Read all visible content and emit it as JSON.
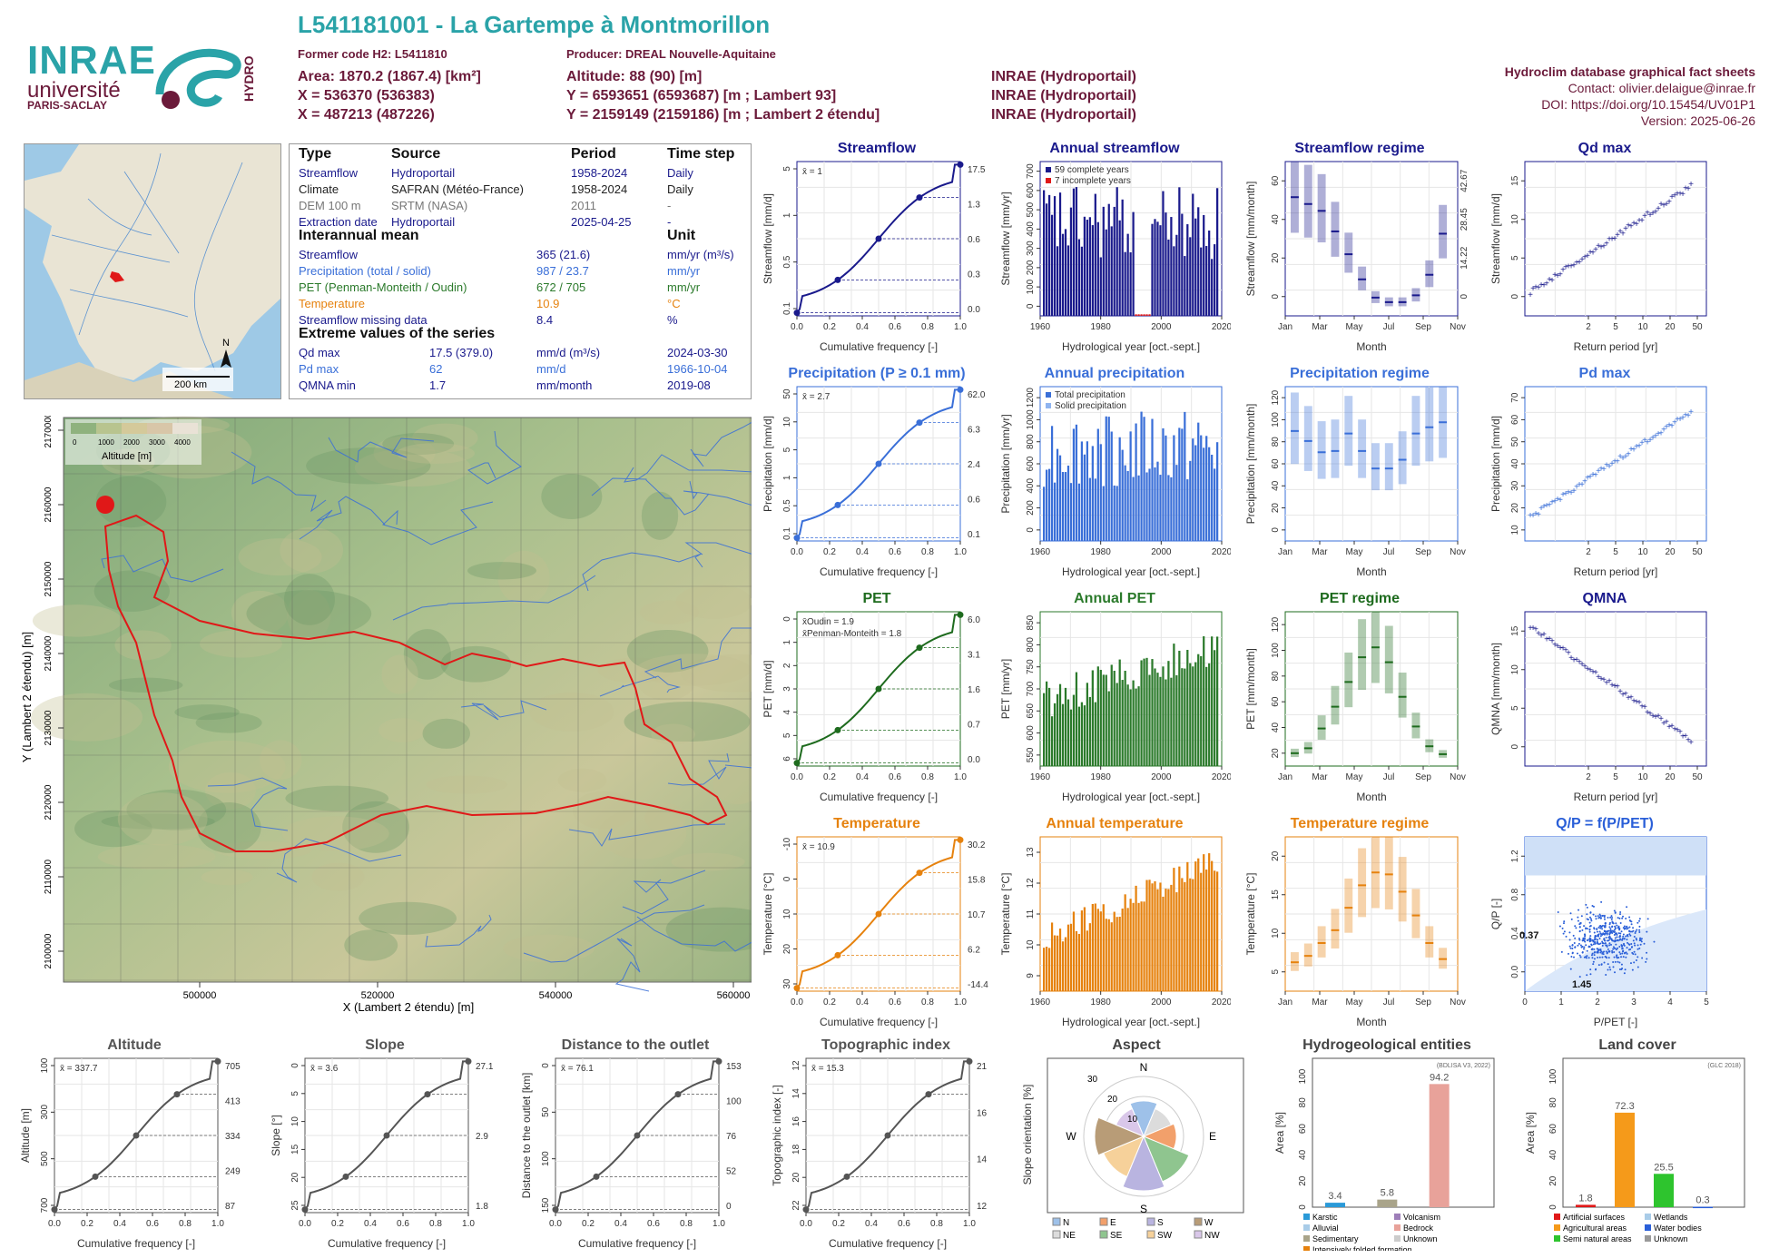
{
  "header": {
    "title": "L541181001 - La Gartempe à Montmorillon",
    "former_code": "Former code H2: L5411810",
    "producer": "Producer: DREAL Nouvelle-Aquitaine",
    "area": "Area: 1870.2 (1867.4) [km²]",
    "x93": "X = 536370 (536383)",
    "x2": "X = 487213 (487226)",
    "altitude": "Altitude: 88 (90) [m]",
    "y93": "Y = 6593651 (6593687) [m ; Lambert 93]",
    "y2": "Y = 2159149 (2159186) [m ; Lambert 2 étendu]",
    "src1": "INRAE (Hydroportail)",
    "src2": "INRAE (Hydroportail)",
    "src3": "INRAE (Hydroportail)",
    "db_title": "Hydroclim database graphical fact sheets",
    "contact": "Contact: olivier.delaigue@inrae.fr",
    "doi": "DOI: https://doi.org/10.15454/UV01P1",
    "version": "Version: 2025-06-26"
  },
  "logos": {
    "inrae": "INRAE",
    "univ": "université",
    "ps": "PARIS-SACLAY",
    "hydro": "HYDRO"
  },
  "info": {
    "headers": [
      "Type",
      "Source",
      "Period",
      "Time step"
    ],
    "rows": [
      {
        "type": "Streamflow",
        "source": "Hydroportail",
        "period": "1958-2024",
        "step": "Daily",
        "color": "#1a1a8c"
      },
      {
        "type": "Climate",
        "source": "SAFRAN (Météo-France)",
        "period": "1958-2024",
        "step": "Daily",
        "color": "#222222"
      },
      {
        "type": "DEM 100 m",
        "source": "SRTM (NASA)",
        "period": "2011",
        "step": "-",
        "color": "#777777"
      },
      {
        "type": "Extraction date",
        "source": "Hydroportail",
        "period": "2025-04-25",
        "step": "-",
        "color": "#1a1a8c"
      }
    ],
    "inter_title": "Interannual mean",
    "unit_title": "Unit",
    "inter": [
      {
        "label": "Streamflow",
        "value": "365 (21.6)",
        "unit": "mm/yr (m³/s)",
        "color": "#1a1a8c"
      },
      {
        "label": "Precipitation (total / solid)",
        "value": "987 / 23.7",
        "unit": "mm/yr",
        "color": "#3a6fd8"
      },
      {
        "label": "PET (Penman-Monteith / Oudin)",
        "value": "672 / 705",
        "unit": "mm/yr",
        "color": "#2b7a2b"
      },
      {
        "label": "Temperature",
        "value": "10.9",
        "unit": "°C",
        "color": "#e6820e"
      },
      {
        "label": "Streamflow missing data",
        "value": "8.4",
        "unit": "%",
        "color": "#1a1a8c"
      }
    ],
    "extreme_title": "Extreme values of the series",
    "extreme": [
      {
        "label": "Qd max",
        "value": "17.5 (379.0)",
        "unit": "mm/d (m³/s)",
        "date": "2024-03-30",
        "color": "#1a1a8c"
      },
      {
        "label": "Pd max",
        "value": "62",
        "unit": "mm/d",
        "date": "1966-10-04",
        "color": "#3a6fd8"
      },
      {
        "label": "QMNA min",
        "value": "1.7",
        "unit": "mm/month",
        "date": "2019-08",
        "color": "#1a1a8c"
      }
    ]
  },
  "map": {
    "scale": "200 km",
    "north": "N",
    "legend_title": "Altitude [m]",
    "legend_ticks": [
      "0",
      "1000",
      "2000",
      "3000",
      "4000"
    ],
    "xlabel": "X (Lambert 2 étendu) [m]",
    "ylabel": "Y (Lambert 2 étendu) [m]",
    "xticks": [
      "500000",
      "520000",
      "540000",
      "560000"
    ],
    "yticks": [
      "2100000",
      "2110000",
      "2120000",
      "2130000",
      "2140000",
      "2150000",
      "2160000",
      "2170000"
    ]
  },
  "chart_data": [
    {
      "id": "streamflow_cdf",
      "type": "line",
      "title": "Streamflow",
      "xlabel": "Cumulative frequency [-]",
      "ylabel": "Streamflow [mm/d]",
      "scale": "log",
      "mean_label": "x̄ = 1",
      "right_ticks": [
        "17.5",
        "1.3",
        "0.6",
        "0.3",
        "0.0"
      ],
      "left_ticks": [
        "5",
        "1",
        "0.5",
        "0.1"
      ],
      "x_ticks": [
        "0.0",
        "0.2",
        "0.4",
        "0.6",
        "0.8",
        "1.0"
      ],
      "color": "#1a1a8c"
    },
    {
      "id": "annual_streamflow",
      "type": "bar",
      "title": "Annual streamflow",
      "xlabel": "Hydrological year [oct.-sept.]",
      "ylabel": "Streamflow [mm/yr]",
      "legend": [
        "59 complete years",
        "7 incomplete years"
      ],
      "x_ticks": [
        "1960",
        "1980",
        "2000",
        "2020"
      ],
      "y_ticks": [
        "0",
        "100",
        "200",
        "300",
        "400",
        "500",
        "600",
        "700"
      ],
      "color": "#1a1a8c"
    },
    {
      "id": "streamflow_regime",
      "type": "bar",
      "title": "Streamflow regime",
      "xlabel": "Month",
      "ylabel": "Streamflow [mm/month]",
      "ylabel2": "Streamflow [m³/s]",
      "x_ticks": [
        "Jan",
        "Mar",
        "May",
        "Jul",
        "Sep",
        "Nov"
      ],
      "y_ticks": [
        "0",
        "20",
        "40",
        "60"
      ],
      "right_ticks": [
        "0",
        "14.22",
        "28.45",
        "42.67"
      ],
      "median": [
        52,
        49,
        46,
        37,
        27,
        16,
        8,
        6,
        6,
        9,
        18,
        36
      ],
      "color": "#1a1a8c"
    },
    {
      "id": "qd_max",
      "type": "scatter",
      "title": "Qd max",
      "xlabel": "Return period [yr]",
      "ylabel": "Streamflow [mm/d]",
      "x_ticks": [
        "2",
        "5",
        "10",
        "20",
        "50"
      ],
      "y_ticks": [
        "0",
        "5",
        "10",
        "15"
      ],
      "color": "#1a1a8c"
    },
    {
      "id": "precip_cdf",
      "type": "line",
      "title": "Precipitation (P ≥ 0.1 mm)",
      "xlabel": "Cumulative frequency [-]",
      "ylabel": "Precipitation [mm/d]",
      "mean_label": "x̄ = 2.7",
      "right_ticks": [
        "62.0",
        "6.3",
        "2.4",
        "0.6",
        "0.1"
      ],
      "left_ticks": [
        "50",
        "10",
        "5",
        "1",
        "0.5",
        "0.1"
      ],
      "x_ticks": [
        "0.0",
        "0.2",
        "0.4",
        "0.6",
        "0.8",
        "1.0"
      ],
      "color": "#3a6fd8"
    },
    {
      "id": "annual_precip",
      "type": "bar",
      "title": "Annual precipitation",
      "xlabel": "Hydrological year [oct.-sept.]",
      "ylabel": "Precipitation [mm/yr]",
      "legend": [
        "Total precipitation",
        "Solid precipitation"
      ],
      "x_ticks": [
        "1960",
        "1980",
        "2000",
        "2020"
      ],
      "y_ticks": [
        "0",
        "200",
        "400",
        "600",
        "800",
        "1000",
        "1200"
      ],
      "color": "#3a6fd8"
    },
    {
      "id": "precip_regime",
      "type": "bar",
      "title": "Precipitation regime",
      "xlabel": "Month",
      "ylabel": "Precipitation [mm/month]",
      "x_ticks": [
        "Jan",
        "Mar",
        "May",
        "Jul",
        "Sep",
        "Nov"
      ],
      "y_ticks": [
        "0",
        "20",
        "40",
        "60",
        "80",
        "100",
        "120"
      ],
      "median": [
        88,
        80,
        71,
        72,
        86,
        72,
        58,
        58,
        65,
        86,
        91,
        95
      ],
      "color": "#3a6fd8"
    },
    {
      "id": "pd_max",
      "type": "scatter",
      "title": "Pd max",
      "xlabel": "Return period [yr]",
      "ylabel": "Precipitation [mm/d]",
      "x_ticks": [
        "2",
        "5",
        "10",
        "20",
        "50"
      ],
      "y_ticks": [
        "10",
        "20",
        "30",
        "40",
        "50",
        "60",
        "70"
      ],
      "color": "#3a6fd8"
    },
    {
      "id": "pet_cdf",
      "type": "line",
      "title": "PET",
      "xlabel": "Cumulative frequency [-]",
      "ylabel": "PET [mm/d]",
      "mean_labels": [
        "x̄Oudin = 1.9",
        "x̄Penman-Monteith = 1.8"
      ],
      "right_ticks": [
        "6.0",
        "3.1",
        "1.6",
        "0.7",
        "0.0"
      ],
      "left_ticks": [
        "0",
        "1",
        "2",
        "3",
        "4",
        "5",
        "6"
      ],
      "x_ticks": [
        "0.0",
        "0.2",
        "0.4",
        "0.6",
        "0.8",
        "1.0"
      ],
      "color": "#1e6b1e"
    },
    {
      "id": "annual_pet",
      "type": "bar",
      "title": "Annual PET",
      "xlabel": "Hydrological year [oct.-sept.]",
      "ylabel": "PET [mm/yr]",
      "x_ticks": [
        "1960",
        "1980",
        "2000",
        "2020"
      ],
      "y_ticks": [
        "550",
        "600",
        "650",
        "700",
        "750",
        "800",
        "850"
      ],
      "color": "#2b7a2b"
    },
    {
      "id": "pet_regime",
      "type": "bar",
      "title": "PET regime",
      "xlabel": "Month",
      "ylabel": "PET [mm/month]",
      "x_ticks": [
        "Jan",
        "Mar",
        "May",
        "Jul",
        "Sep",
        "Nov"
      ],
      "y_ticks": [
        "20",
        "40",
        "60",
        "80",
        "100",
        "120"
      ],
      "median": [
        13,
        18,
        38,
        60,
        85,
        110,
        120,
        105,
        70,
        40,
        20,
        12
      ],
      "color": "#1e6b1e"
    },
    {
      "id": "qmna",
      "type": "scatter",
      "title": "QMNA",
      "xlabel": "Return period [yr]",
      "ylabel": "QMNA [mm/month]",
      "x_ticks": [
        "2",
        "5",
        "10",
        "20",
        "50"
      ],
      "y_ticks": [
        "0",
        "5",
        "10",
        "15"
      ],
      "color": "#1a1a8c"
    },
    {
      "id": "temp_cdf",
      "type": "line",
      "title": "Temperature",
      "xlabel": "Cumulative frequency [-]",
      "ylabel": "Temperature [°C]",
      "mean_label": "x̄ = 10.9",
      "right_ticks": [
        "30.2",
        "15.8",
        "10.7",
        "6.2",
        "-14.4"
      ],
      "left_ticks": [
        "-10",
        "0",
        "10",
        "20",
        "30"
      ],
      "x_ticks": [
        "0.0",
        "0.2",
        "0.4",
        "0.6",
        "0.8",
        "1.0"
      ],
      "color": "#e6820e"
    },
    {
      "id": "annual_temp",
      "type": "bar",
      "title": "Annual temperature",
      "xlabel": "Hydrological year [oct.-sept.]",
      "ylabel": "Temperature [°C]",
      "x_ticks": [
        "1960",
        "1980",
        "2000",
        "2020"
      ],
      "y_ticks": [
        "9",
        "10",
        "11",
        "12",
        "13"
      ],
      "color": "#e6820e"
    },
    {
      "id": "temp_regime",
      "type": "bar",
      "title": "Temperature regime",
      "xlabel": "Month",
      "ylabel": "Temperature [°C]",
      "x_ticks": [
        "Jan",
        "Mar",
        "May",
        "Jul",
        "Sep",
        "Nov"
      ],
      "y_ticks": [
        "5",
        "10",
        "15",
        "20"
      ],
      "median": [
        4.5,
        5.5,
        7.5,
        9.5,
        13,
        16.5,
        18.5,
        18.2,
        15.5,
        11.8,
        7.5,
        5
      ],
      "color": "#e6820e"
    },
    {
      "id": "qp_ppet",
      "type": "scatter",
      "title": "Q/P = f(P/PET)",
      "xlabel": "P/PET [-]",
      "ylabel": "Q/P [-]",
      "x_ticks": [
        "0",
        "1",
        "2",
        "3",
        "4",
        "5"
      ],
      "y_ticks": [
        "0.0",
        "0.4",
        "0.8",
        "1.2"
      ],
      "annotations": [
        "0.37",
        "1.45"
      ],
      "color": "#2a5fd8"
    },
    {
      "id": "altitude_cdf",
      "type": "line",
      "title": "Altitude",
      "xlabel": "Cumulative frequency [-]",
      "ylabel": "Altitude [m]",
      "mean_label": "x̄ = 337.7",
      "right_ticks": [
        "705",
        "413",
        "334",
        "249",
        "87"
      ],
      "left_ticks": [
        "100",
        "300",
        "500",
        "700"
      ],
      "x_ticks": [
        "0.0",
        "0.2",
        "0.4",
        "0.6",
        "0.8",
        "1.0"
      ],
      "color": "#555555"
    },
    {
      "id": "slope_cdf",
      "type": "line",
      "title": "Slope",
      "xlabel": "Cumulative frequency [-]",
      "ylabel": "Slope [°]",
      "mean_label": "x̄ = 3.6",
      "right_ticks": [
        "27.1",
        "2.9",
        "1.8"
      ],
      "left_ticks": [
        "0",
        "5",
        "10",
        "15",
        "20",
        "25"
      ],
      "x_ticks": [
        "0.0",
        "0.2",
        "0.4",
        "0.6",
        "0.8",
        "1.0"
      ],
      "color": "#555555"
    },
    {
      "id": "distance_cdf",
      "type": "line",
      "title": "Distance to the outlet",
      "xlabel": "Cumulative frequency [-]",
      "ylabel": "Distance to the outlet [km]",
      "mean_label": "x̄ = 76.1",
      "right_ticks": [
        "153",
        "100",
        "76",
        "52",
        "0"
      ],
      "left_ticks": [
        "0",
        "50",
        "100",
        "150"
      ],
      "x_ticks": [
        "0.0",
        "0.2",
        "0.4",
        "0.6",
        "0.8",
        "1.0"
      ],
      "color": "#555555"
    },
    {
      "id": "topo_cdf",
      "type": "line",
      "title": "Topographic index",
      "xlabel": "Cumulative frequency [-]",
      "ylabel": "Topographic index [-]",
      "mean_label": "x̄ = 15.3",
      "right_ticks": [
        "21",
        "16",
        "14",
        "12"
      ],
      "left_ticks": [
        "12",
        "14",
        "16",
        "18",
        "20",
        "22"
      ],
      "x_ticks": [
        "0.0",
        "0.2",
        "0.4",
        "0.6",
        "0.8",
        "1.0"
      ],
      "color": "#555555"
    },
    {
      "id": "aspect",
      "type": "pie",
      "title": "Aspect",
      "ylabel": "Slope orientation [%]",
      "directions": [
        "N",
        "E",
        "S",
        "W"
      ],
      "rings": [
        "10",
        "20",
        "30"
      ],
      "legend": [
        "N",
        "E",
        "S",
        "W",
        "NE",
        "SE",
        "SW",
        "NW"
      ],
      "sector_values": [
        13,
        11,
        12,
        18,
        20,
        16,
        18,
        11
      ],
      "sector_colors": [
        "#9ec1e9",
        "#dcdcdc",
        "#f2a06b",
        "#8fc58f",
        "#b9b4e0",
        "#f6d19a",
        "#b89c77",
        "#d9c7e9"
      ]
    },
    {
      "id": "hydrogeology",
      "type": "bar",
      "title": "Hydrogeological entities",
      "ylabel": "Area [%]",
      "source": "(BDLISA V3, 2022)",
      "y_ticks": [
        "0",
        "20",
        "40",
        "60",
        "80",
        "100"
      ],
      "categories": [
        "Karstic",
        "Sedimentary",
        "Bedrock"
      ],
      "values": [
        3.4,
        5.8,
        94.2
      ],
      "bar_colors": [
        "#2a9ad8",
        "#a9a48a",
        "#e8a29a"
      ],
      "legend": [
        "Karstic",
        "Volcanism",
        "Alluvial",
        "Bedrock",
        "Sedimentary",
        "Unknown",
        "Intensively folded formation"
      ],
      "legend_colors": [
        "#2a9ad8",
        "#9e7fb9",
        "#a9cce8",
        "#e8a29a",
        "#a9a48a",
        "#cccccc",
        "#e6820e"
      ]
    },
    {
      "id": "land_cover",
      "type": "bar",
      "title": "Land cover",
      "ylabel": "Area [%]",
      "source": "(GLC 2018)",
      "y_ticks": [
        "0",
        "20",
        "40",
        "60",
        "80",
        "100"
      ],
      "categories": [
        "Artificial surfaces",
        "Agricultural areas",
        "Semi natural areas",
        "Water bodies"
      ],
      "values": [
        1.8,
        72.3,
        25.5,
        0.3
      ],
      "bar_colors": [
        "#e01818",
        "#f59a1a",
        "#2ec42e",
        "#2a5fd8"
      ],
      "legend": [
        "Artificial surfaces",
        "Wetlands",
        "Agricultural areas",
        "Water bodies",
        "Semi natural areas",
        "Unknown"
      ],
      "legend_colors": [
        "#e01818",
        "#a9cce8",
        "#f59a1a",
        "#2a5fd8",
        "#2ec42e",
        "#999999"
      ]
    }
  ]
}
